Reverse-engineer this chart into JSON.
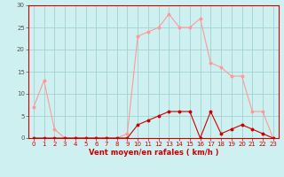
{
  "x": [
    0,
    1,
    2,
    3,
    4,
    5,
    6,
    7,
    8,
    9,
    10,
    11,
    12,
    13,
    14,
    15,
    16,
    17,
    18,
    19,
    20,
    21,
    22,
    23
  ],
  "vent_moyen": [
    0,
    0,
    0,
    0,
    0,
    0,
    0,
    0,
    0,
    0,
    3,
    4,
    5,
    6,
    6,
    6,
    0,
    6,
    1,
    2,
    3,
    2,
    1,
    0
  ],
  "rafales": [
    7,
    13,
    2,
    0,
    0,
    0,
    0,
    0,
    0,
    1,
    23,
    24,
    25,
    28,
    25,
    25,
    27,
    17,
    16,
    14,
    14,
    6,
    6,
    0
  ],
  "bg_color": "#cff0f0",
  "grid_color": "#99cccc",
  "line_color_moyen": "#cc0000",
  "line_color_rafales": "#ff9999",
  "xlabel": "Vent moyen/en rafales ( km/h )",
  "ylim": [
    0,
    30
  ],
  "xlim_min": -0.5,
  "xlim_max": 23.5,
  "yticks": [
    0,
    5,
    10,
    15,
    20,
    25,
    30
  ],
  "xticks": [
    0,
    1,
    2,
    3,
    4,
    5,
    6,
    7,
    8,
    9,
    10,
    11,
    12,
    13,
    14,
    15,
    16,
    17,
    18,
    19,
    20,
    21,
    22,
    23
  ],
  "tick_fontsize": 5,
  "xlabel_fontsize": 6,
  "ylabel_fontsize": 6
}
